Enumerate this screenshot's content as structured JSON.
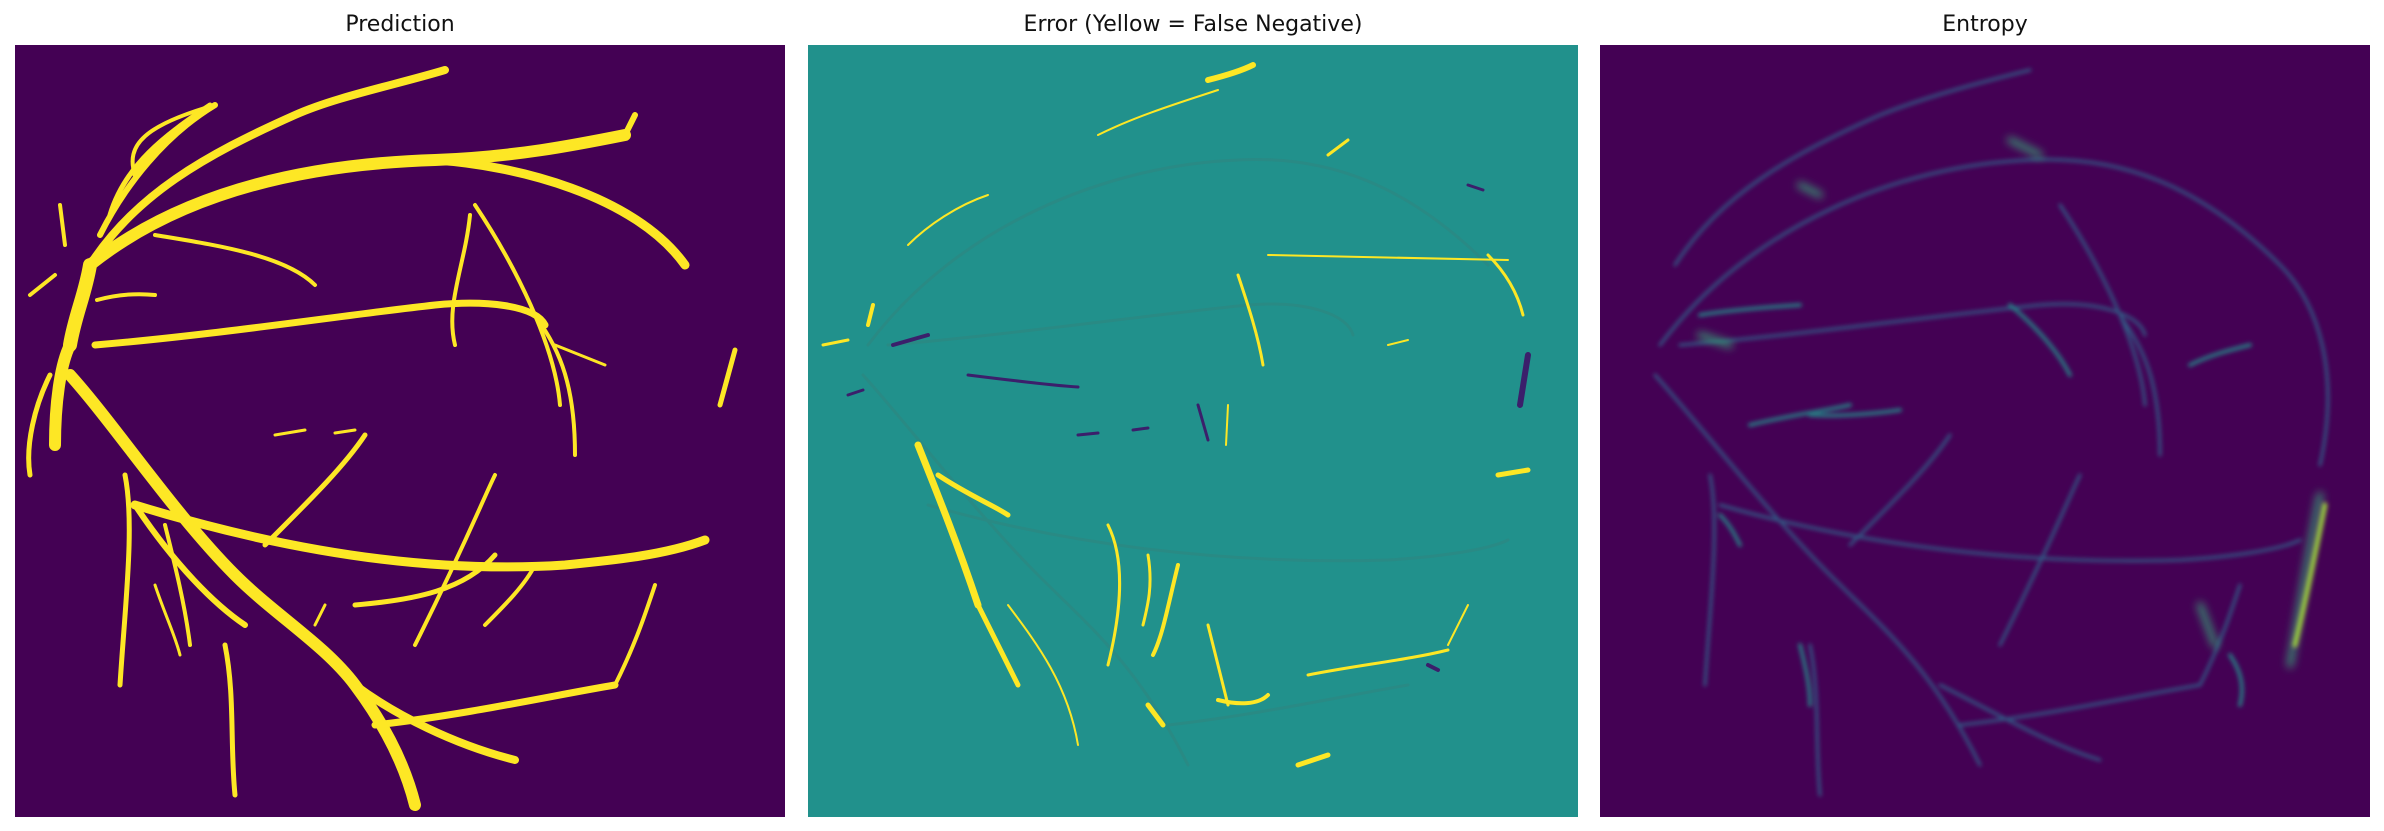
{
  "panels": [
    {
      "title": "Prediction"
    },
    {
      "title": "Error (Yellow = False Negative)"
    },
    {
      "title": "Entropy"
    }
  ],
  "colors": {
    "background_dark": "#440154",
    "vessel_yellow": "#fde725",
    "error_background": "#21918c",
    "error_false_positive": "#3b1f6b",
    "entropy_vessel_edge": "#31688e",
    "entropy_high": "#35b779"
  }
}
